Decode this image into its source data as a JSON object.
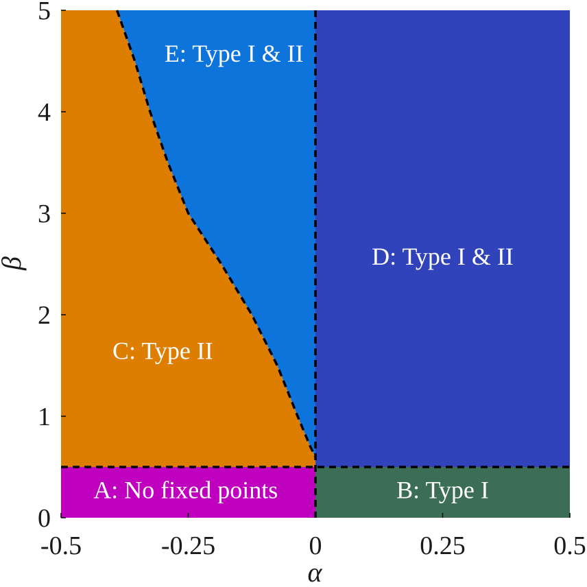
{
  "chart_data": {
    "type": "heatmap",
    "title": "",
    "xlabel": "α",
    "ylabel": "β",
    "xlim": [
      -0.5,
      0.5
    ],
    "ylim": [
      0,
      5
    ],
    "grid": false,
    "x_ticks": [
      {
        "value": -0.5,
        "label": "-0.5"
      },
      {
        "value": -0.25,
        "label": "-0.25"
      },
      {
        "value": 0,
        "label": "0"
      },
      {
        "value": 0.25,
        "label": "0.25"
      },
      {
        "value": 0.5,
        "label": "0.5"
      }
    ],
    "y_ticks": [
      {
        "value": 0,
        "label": "0"
      },
      {
        "value": 1,
        "label": "1"
      },
      {
        "value": 2,
        "label": "2"
      },
      {
        "value": 3,
        "label": "3"
      },
      {
        "value": 4,
        "label": "4"
      },
      {
        "value": 5,
        "label": "5"
      }
    ],
    "boundaries": {
      "beta_horizontal": 0.5,
      "alpha_vertical": 0,
      "curve": [
        {
          "alpha": -0.39,
          "beta": 5.0
        },
        {
          "alpha": -0.355,
          "beta": 4.5
        },
        {
          "alpha": -0.325,
          "beta": 4.0
        },
        {
          "alpha": -0.29,
          "beta": 3.5
        },
        {
          "alpha": -0.25,
          "beta": 3.0
        },
        {
          "alpha": -0.185,
          "beta": 2.5
        },
        {
          "alpha": -0.125,
          "beta": 2.0
        },
        {
          "alpha": -0.075,
          "beta": 1.5
        },
        {
          "alpha": -0.035,
          "beta": 1.0
        },
        {
          "alpha": -0.01,
          "beta": 0.7
        },
        {
          "alpha": 0.0,
          "beta": 0.6
        }
      ]
    },
    "regions": [
      {
        "id": "A",
        "label": "A: No fixed points",
        "color": "#BF00BF",
        "label_at": {
          "alpha": -0.255,
          "beta": 0.25
        }
      },
      {
        "id": "B",
        "label": "B: Type I",
        "color": "#3C6E55",
        "label_at": {
          "alpha": 0.25,
          "beta": 0.25
        }
      },
      {
        "id": "C",
        "label": "C: Type II",
        "color": "#DE7E00",
        "label_at": {
          "alpha": -0.3,
          "beta": 1.62
        }
      },
      {
        "id": "D",
        "label": "D: Type I & II",
        "color": "#3143BB",
        "label_at": {
          "alpha": 0.25,
          "beta": 2.55
        }
      },
      {
        "id": "E",
        "label": "E: Type I & II",
        "color": "#0D74DB",
        "label_at": {
          "alpha": -0.16,
          "beta": 4.55
        }
      }
    ]
  }
}
